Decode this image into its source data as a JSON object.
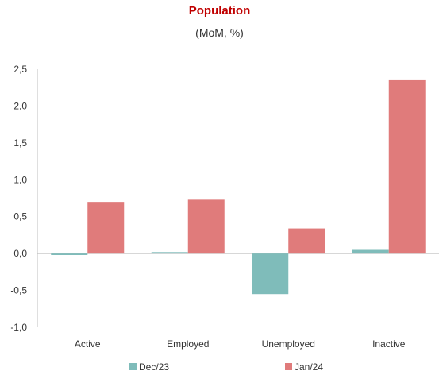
{
  "chart_data": {
    "type": "bar",
    "title": "Population",
    "subtitle": "(MoM, %)",
    "categories": [
      "Active",
      "Employed",
      "Unemployed",
      "Inactive"
    ],
    "series": [
      {
        "name": "Dec/23",
        "color": "#7fbcba",
        "values": [
          -0.02,
          0.02,
          -0.55,
          0.05
        ]
      },
      {
        "name": "Jan/24",
        "color": "#e07b7b",
        "values": [
          0.7,
          0.73,
          0.34,
          2.35
        ]
      }
    ],
    "ylim": [
      -1.0,
      2.5
    ],
    "yticks": [
      "-1,0",
      "-0,5",
      "0,0",
      "0,5",
      "1,0",
      "1,5",
      "2,0",
      "2,5"
    ],
    "ytick_values": [
      -1.0,
      -0.5,
      0.0,
      0.5,
      1.0,
      1.5,
      2.0,
      2.5
    ],
    "grid": false,
    "legend_position": "bottom"
  }
}
